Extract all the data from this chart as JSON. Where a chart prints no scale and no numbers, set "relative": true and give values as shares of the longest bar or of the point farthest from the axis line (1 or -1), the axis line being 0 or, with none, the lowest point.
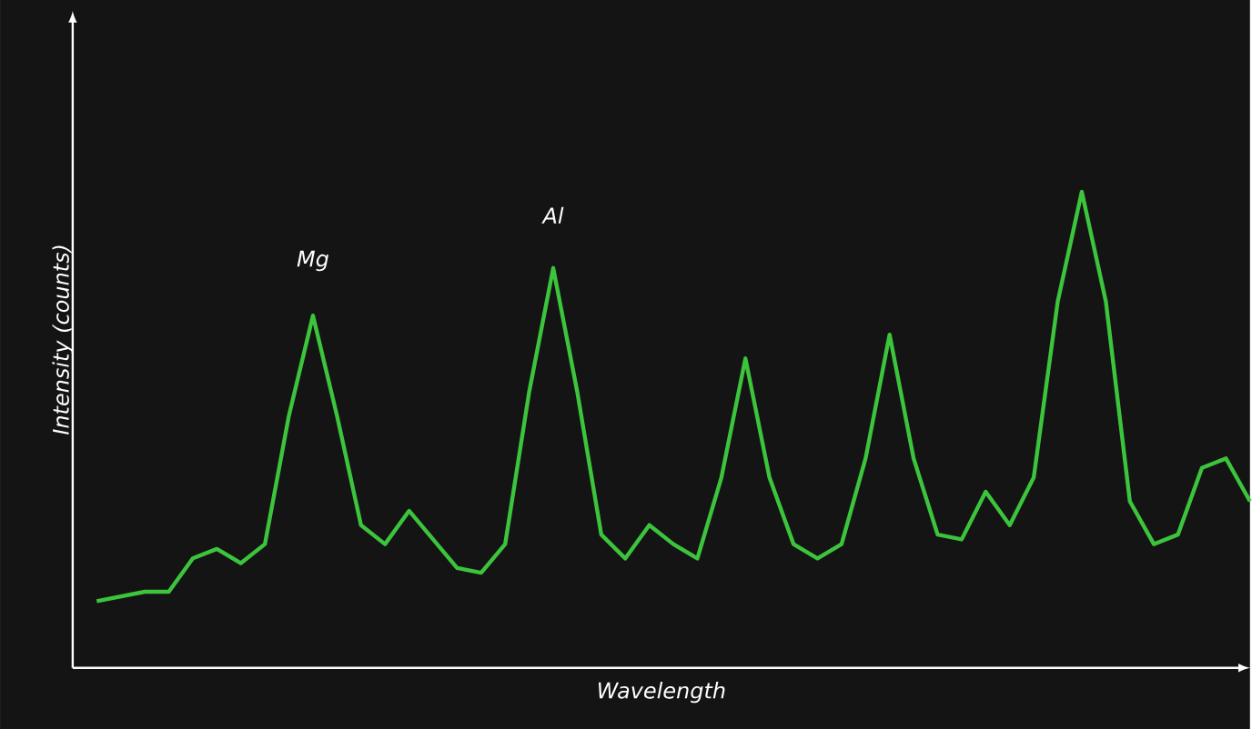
{
  "chart_data": {
    "type": "line",
    "relative": true,
    "xlabel": "Wavelength",
    "ylabel": "Intensity (counts)",
    "annotations": [
      "Mg",
      "Al"
    ],
    "categories": [
      null,
      null,
      null,
      null,
      null,
      null,
      null,
      null,
      null,
      null,
      null,
      null,
      null,
      null,
      null,
      null,
      null,
      null,
      null,
      null,
      null,
      null,
      null,
      null,
      null,
      null,
      null,
      null,
      null,
      null,
      null,
      null,
      null,
      null,
      null,
      null,
      null,
      null,
      null,
      null,
      null,
      null,
      null,
      null,
      null,
      null,
      null,
      null,
      null
    ],
    "series": [
      {
        "color": "#3cc43c",
        "values": [
          0.14,
          0.15,
          0.16,
          0.16,
          0.23,
          0.25,
          0.22,
          0.26,
          0.53,
          0.74,
          0.53,
          0.3,
          0.26,
          0.33,
          0.27,
          0.21,
          0.2,
          0.26,
          0.58,
          0.84,
          0.58,
          0.28,
          0.23,
          0.3,
          0.26,
          0.23,
          0.4,
          0.65,
          0.4,
          0.26,
          0.23,
          0.26,
          0.44,
          0.7,
          0.44,
          0.28,
          0.27,
          0.37,
          0.3,
          0.4,
          0.77,
          1,
          0.77,
          0.35,
          0.26,
          0.28,
          0.42,
          0.44,
          0.35
        ]
      }
    ],
    "marker": "none",
    "line_style": "solid"
  }
}
